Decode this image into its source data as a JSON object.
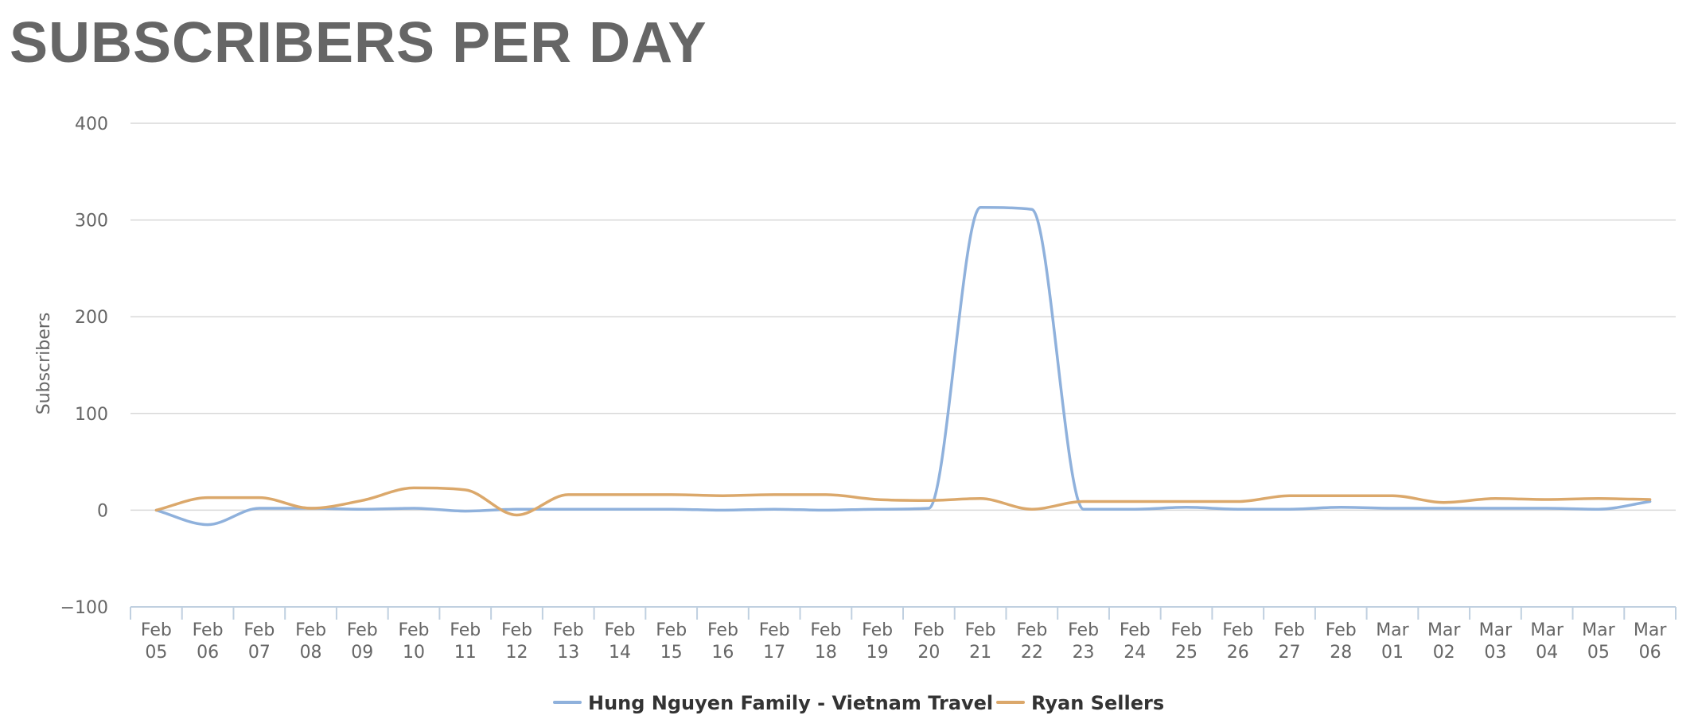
{
  "chart_data": {
    "type": "line",
    "title": "SUBSCRIBERS PER DAY",
    "ylabel": "Subscribers",
    "xlabel": "",
    "ylim": [
      -100,
      400
    ],
    "yticks": [
      -100,
      0,
      100,
      200,
      300,
      400
    ],
    "ytick_labels": [
      "−100",
      "0",
      "100",
      "200",
      "300",
      "400"
    ],
    "categories": [
      "Feb 05",
      "Feb 06",
      "Feb 07",
      "Feb 08",
      "Feb 09",
      "Feb 10",
      "Feb 11",
      "Feb 12",
      "Feb 13",
      "Feb 14",
      "Feb 15",
      "Feb 16",
      "Feb 17",
      "Feb 18",
      "Feb 19",
      "Feb 20",
      "Feb 21",
      "Feb 22",
      "Feb 23",
      "Feb 24",
      "Feb 25",
      "Feb 26",
      "Feb 27",
      "Feb 28",
      "Mar 01",
      "Mar 02",
      "Mar 03",
      "Mar 04",
      "Mar 05",
      "Mar 06"
    ],
    "grid": true,
    "legend_position": "bottom-center",
    "series": [
      {
        "name": "Hung Nguyen Family - Vietnam Travel",
        "color": "#8fb1dc",
        "values": [
          0,
          -15,
          2,
          2,
          1,
          2,
          -1,
          1,
          1,
          1,
          1,
          0,
          1,
          0,
          1,
          2,
          313,
          311,
          1,
          1,
          3,
          1,
          1,
          3,
          2,
          2,
          2,
          2,
          1,
          9
        ]
      },
      {
        "name": "Ryan Sellers",
        "color": "#dba86b",
        "values": [
          0,
          13,
          13,
          2,
          10,
          23,
          21,
          -5,
          16,
          16,
          16,
          15,
          16,
          16,
          11,
          10,
          12,
          1,
          9,
          9,
          9,
          9,
          15,
          15,
          15,
          8,
          12,
          11,
          12,
          11
        ]
      }
    ]
  }
}
